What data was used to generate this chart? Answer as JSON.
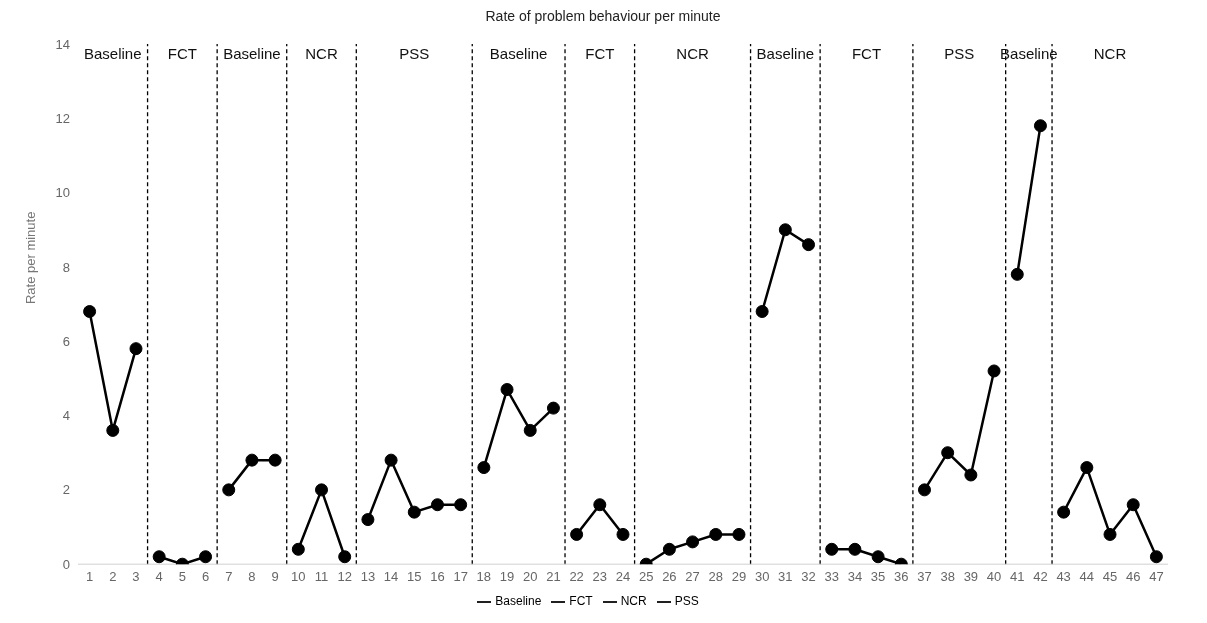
{
  "chart_data": {
    "type": "line",
    "title": "Rate of problem behaviour per minute",
    "ylabel": "Rate per minute",
    "x": [
      1,
      2,
      3,
      4,
      5,
      6,
      7,
      8,
      9,
      10,
      11,
      12,
      13,
      14,
      15,
      16,
      17,
      18,
      19,
      20,
      21,
      22,
      23,
      24,
      25,
      26,
      27,
      28,
      29,
      30,
      31,
      32,
      33,
      34,
      35,
      36,
      37,
      38,
      39,
      40,
      41,
      42,
      43,
      44,
      45,
      46,
      47
    ],
    "xlim": [
      0.5,
      47.5
    ],
    "xticks": [
      1,
      2,
      3,
      4,
      5,
      6,
      7,
      8,
      9,
      10,
      11,
      12,
      13,
      14,
      15,
      16,
      17,
      18,
      19,
      20,
      21,
      22,
      23,
      24,
      25,
      26,
      27,
      28,
      29,
      30,
      31,
      32,
      33,
      34,
      35,
      36,
      37,
      38,
      39,
      40,
      41,
      42,
      43,
      44,
      45,
      46,
      47
    ],
    "ylim": [
      0,
      14
    ],
    "yticks": [
      0,
      2,
      4,
      6,
      8,
      10,
      12,
      14
    ],
    "series": [
      {
        "name": "Baseline",
        "color": "#000000",
        "values": [
          6.8,
          3.6,
          5.8,
          null,
          null,
          null,
          2.0,
          2.8,
          2.8,
          null,
          null,
          null,
          null,
          null,
          null,
          null,
          null,
          2.6,
          4.7,
          3.6,
          4.2,
          null,
          null,
          null,
          null,
          null,
          null,
          null,
          null,
          6.8,
          9.0,
          8.6,
          null,
          null,
          null,
          null,
          null,
          null,
          null,
          null,
          7.8,
          11.8,
          null,
          null,
          null,
          null,
          null
        ]
      },
      {
        "name": "FCT",
        "color": "#000000",
        "values": [
          null,
          null,
          null,
          0.2,
          0.0,
          0.2,
          null,
          null,
          null,
          null,
          null,
          null,
          null,
          null,
          null,
          null,
          null,
          null,
          null,
          null,
          null,
          0.8,
          1.6,
          0.8,
          null,
          null,
          null,
          null,
          null,
          null,
          null,
          null,
          0.4,
          0.4,
          0.2,
          0.0,
          null,
          null,
          null,
          null,
          null,
          null,
          null,
          null,
          null,
          null,
          null
        ]
      },
      {
        "name": "NCR",
        "color": "#000000",
        "values": [
          null,
          null,
          null,
          null,
          null,
          null,
          null,
          null,
          null,
          0.4,
          2.0,
          0.2,
          null,
          null,
          null,
          null,
          null,
          null,
          null,
          null,
          null,
          null,
          null,
          null,
          0.0,
          0.4,
          0.6,
          0.8,
          0.8,
          null,
          null,
          null,
          null,
          null,
          null,
          null,
          null,
          null,
          null,
          null,
          null,
          null,
          1.4,
          2.6,
          0.8,
          1.6,
          0.2
        ]
      },
      {
        "name": "PSS",
        "color": "#000000",
        "values": [
          null,
          null,
          null,
          null,
          null,
          null,
          null,
          null,
          null,
          null,
          null,
          null,
          1.2,
          2.8,
          1.4,
          1.6,
          1.6,
          null,
          null,
          null,
          null,
          null,
          null,
          null,
          null,
          null,
          null,
          null,
          null,
          null,
          null,
          null,
          null,
          null,
          null,
          null,
          2.0,
          3.0,
          2.4,
          5.2,
          null,
          null,
          null,
          null,
          null,
          null,
          null
        ]
      }
    ],
    "ref_lines": [
      {
        "axis": "x",
        "value": 3.5,
        "line_style": "dashed",
        "color": "#000000"
      },
      {
        "axis": "x",
        "value": 6.5,
        "line_style": "dashed",
        "color": "#000000"
      },
      {
        "axis": "x",
        "value": 9.5,
        "line_style": "dashed",
        "color": "#000000"
      },
      {
        "axis": "x",
        "value": 12.5,
        "line_style": "dashed",
        "color": "#000000"
      },
      {
        "axis": "x",
        "value": 17.5,
        "line_style": "dashed",
        "color": "#000000"
      },
      {
        "axis": "x",
        "value": 21.5,
        "line_style": "dashed",
        "color": "#000000"
      },
      {
        "axis": "x",
        "value": 24.5,
        "line_style": "dashed",
        "color": "#000000"
      },
      {
        "axis": "x",
        "value": 29.5,
        "line_style": "dashed",
        "color": "#000000"
      },
      {
        "axis": "x",
        "value": 32.5,
        "line_style": "dashed",
        "color": "#000000"
      },
      {
        "axis": "x",
        "value": 36.5,
        "line_style": "dashed",
        "color": "#000000"
      },
      {
        "axis": "x",
        "value": 40.5,
        "line_style": "dashed",
        "color": "#000000"
      },
      {
        "axis": "x",
        "value": 42.5,
        "line_style": "dashed",
        "color": "#000000"
      }
    ],
    "annotations": [
      "Baseline",
      "FCT",
      "Baseline",
      "NCR",
      "PSS",
      "Baseline",
      "FCT",
      "NCR",
      "Baseline",
      "FCT",
      "PSS",
      "Baseline",
      "NCR"
    ],
    "marker": "circle",
    "line_style": "solid",
    "grid": false,
    "legend": "bottom"
  }
}
